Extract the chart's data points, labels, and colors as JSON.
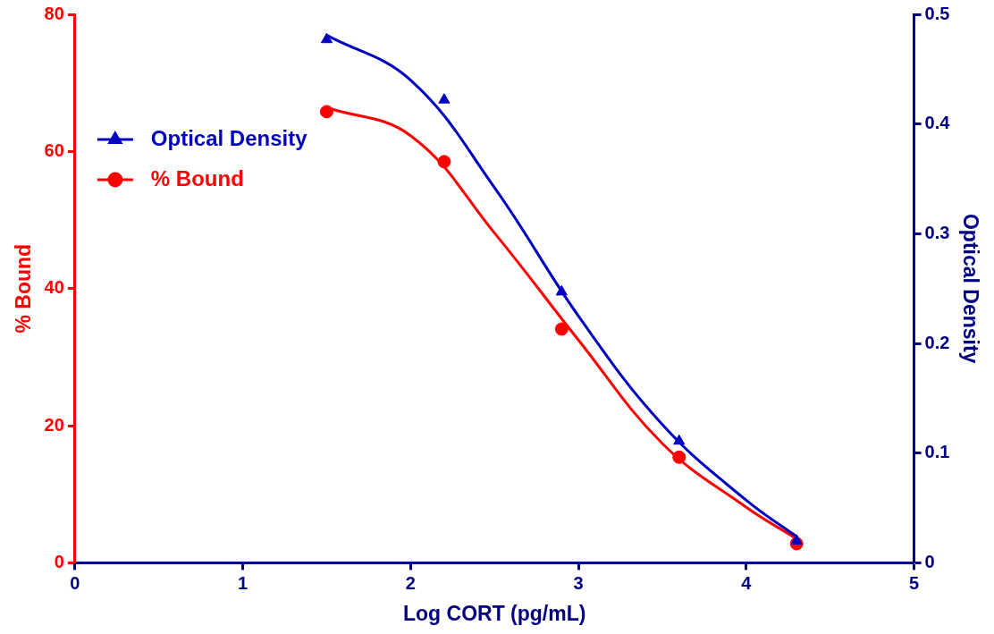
{
  "chart_data": {
    "type": "scatter",
    "xlabel": "Log CORT (pg/mL)",
    "ylabel": "% Bound",
    "y2label": "Optical Density",
    "xlim": [
      0,
      5
    ],
    "xticks": [
      0,
      1,
      2,
      3,
      4,
      5
    ],
    "ylim": [
      0,
      80
    ],
    "yticks": [
      0,
      20,
      40,
      60,
      80
    ],
    "y2lim": [
      0,
      0.5
    ],
    "y2ticks": [
      0,
      0.1,
      0.2,
      0.3,
      0.4,
      0.5
    ],
    "grid": false,
    "legend": "top left",
    "series": [
      {
        "name": "Optical Density",
        "type": "scatter",
        "marker": "triangle",
        "axis": "y2",
        "color": "#0000c0",
        "x": [
          1.5,
          2.2,
          2.9,
          3.6,
          4.3
        ],
        "values": [
          0.477,
          0.422,
          0.247,
          0.111,
          0.02
        ]
      },
      {
        "name": "% Bound",
        "type": "scatter",
        "marker": "circle",
        "color": "#ff0000",
        "x": [
          1.5,
          2.2,
          2.9,
          3.6,
          4.3
        ],
        "values": [
          65.8,
          58.5,
          34.1,
          15.4,
          2.8
        ]
      },
      {
        "type": "line",
        "marker": "none",
        "axis": "y2",
        "color": "#0000c0",
        "x": [
          1.5,
          2.0,
          2.5,
          3.0,
          3.5,
          4.0,
          4.3
        ],
        "values": [
          0.481,
          0.44,
          0.342,
          0.225,
          0.126,
          0.057,
          0.024
        ]
      },
      {
        "type": "line",
        "marker": "none",
        "color": "#ff0000",
        "x": [
          1.5,
          2.0,
          2.5,
          3.0,
          3.5,
          4.0,
          4.3
        ],
        "values": [
          66.4,
          62.3,
          48.1,
          32.5,
          17.4,
          8.1,
          3.5
        ]
      }
    ]
  }
}
